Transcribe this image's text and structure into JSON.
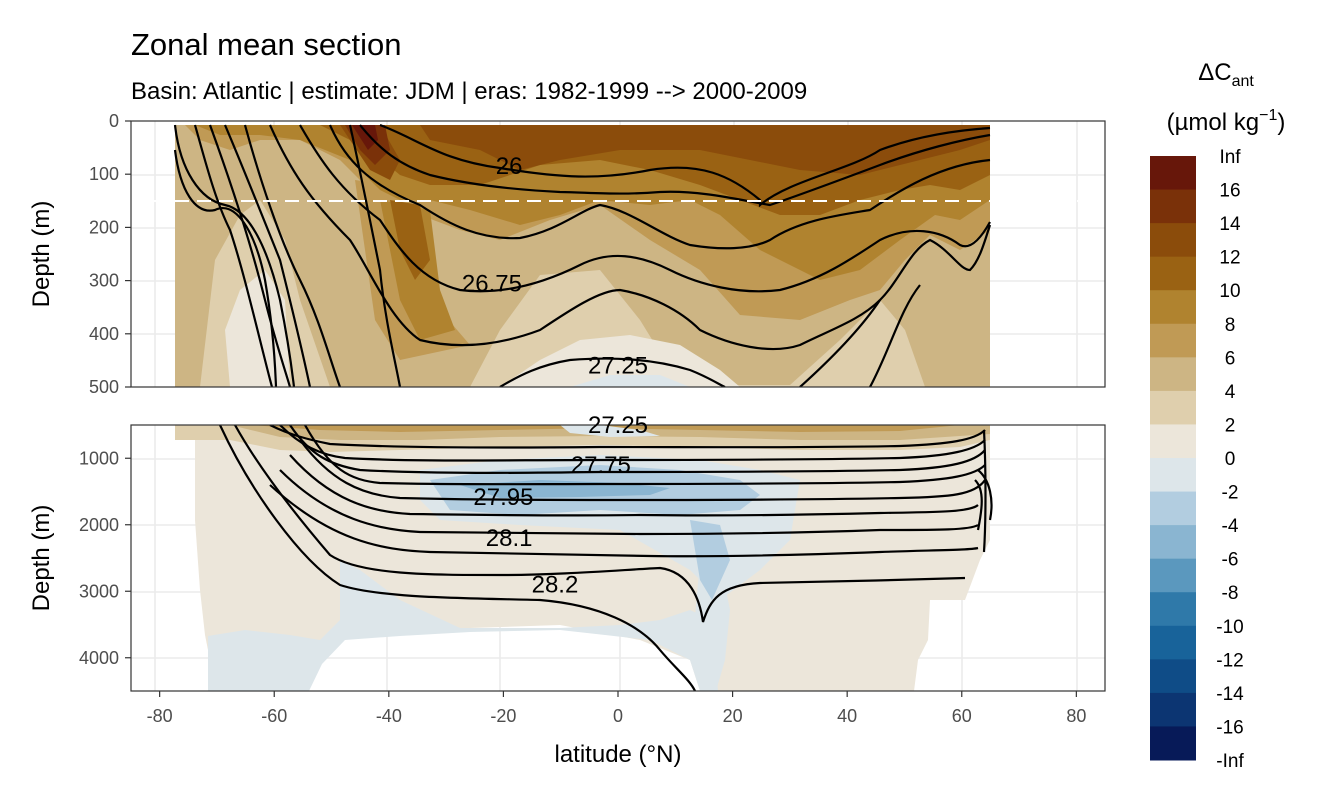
{
  "chart_data": {
    "type": "heatmap",
    "title": "Zonal mean section",
    "subtitle": "Basin: Atlantic | estimate: JDM  | eras: 1982-1999 --> 2000-2009",
    "xlabel": "latitude (°N)",
    "xlim": [
      -85,
      85
    ],
    "x_ticks": [
      -80,
      -60,
      -40,
      -20,
      0,
      20,
      40,
      60,
      80
    ],
    "panels": [
      {
        "name": "upper",
        "ylabel": "Depth (m)",
        "ylim": [
          0,
          500
        ],
        "y_ticks": [
          0,
          100,
          200,
          300,
          400,
          500
        ],
        "reference_depth": 150
      },
      {
        "name": "lower",
        "ylabel": "Depth (m)",
        "ylim": [
          500,
          4500
        ],
        "y_ticks": [
          1000,
          2000,
          3000,
          4000
        ]
      }
    ],
    "legend": {
      "title_main": "ΔC",
      "title_sub": "ant",
      "units_prefix": "(µmol kg",
      "units_sup": "−1",
      "units_suffix": ")",
      "position": "right",
      "labels": [
        "Inf",
        "16",
        "14",
        "12",
        "10",
        "8",
        "6",
        "4",
        "2",
        "0",
        "-2",
        "-4",
        "-6",
        "-8",
        "-10",
        "-12",
        "-14",
        "-16",
        "-Inf"
      ],
      "colors": [
        "#67170a",
        "#7a3109",
        "#8b4c0b",
        "#9a6213",
        "#b0832f",
        "#c09a55",
        "#cdb584",
        "#dfcfad",
        "#ece6da",
        "#dde6ea",
        "#b2cde0",
        "#8ab5d1",
        "#5b98be",
        "#2f79a9",
        "#18639a",
        "#0f4c87",
        "#0c3572",
        "#071a58"
      ]
    },
    "contours": [
      {
        "label": "26",
        "lat": -19,
        "depth": 85
      },
      {
        "label": "26.75",
        "lat": -22,
        "depth": 305
      },
      {
        "label": "27.25",
        "lat": 0,
        "depth": 460
      },
      {
        "label": "27.25",
        "lat": 0,
        "depth": 500
      },
      {
        "label": "27.75",
        "lat": -3,
        "depth": 1100
      },
      {
        "label": "27.95",
        "lat": -20,
        "depth": 1580
      },
      {
        "label": "28.1",
        "lat": -19,
        "depth": 2200
      },
      {
        "label": "28.2",
        "lat": -11,
        "depth": 2900
      }
    ]
  }
}
